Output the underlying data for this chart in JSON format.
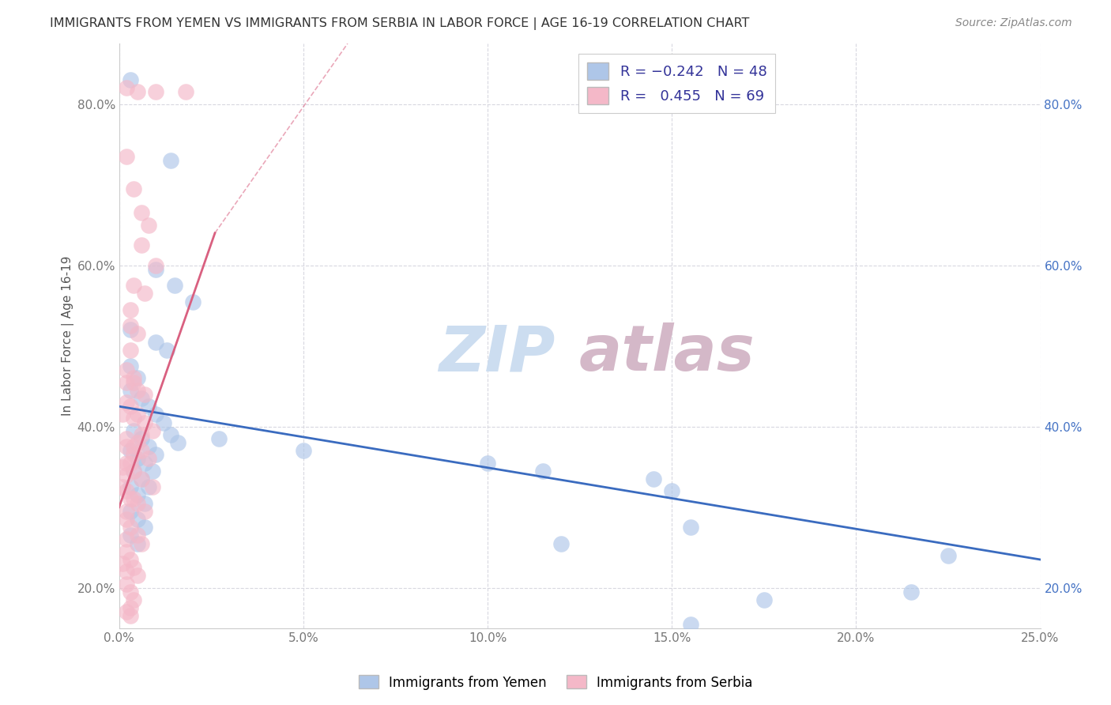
{
  "title": "IMMIGRANTS FROM YEMEN VS IMMIGRANTS FROM SERBIA IN LABOR FORCE | AGE 16-19 CORRELATION CHART",
  "source": "Source: ZipAtlas.com",
  "ylabel": "In Labor Force | Age 16-19",
  "xlim": [
    0.0,
    0.25
  ],
  "ylim": [
    0.15,
    0.875
  ],
  "x_ticks": [
    0.0,
    0.05,
    0.1,
    0.15,
    0.2,
    0.25
  ],
  "y_ticks": [
    0.2,
    0.4,
    0.6,
    0.8
  ],
  "yemen_color": "#aec6e8",
  "serbia_color": "#f4b8c8",
  "yemen_line_color": "#3a6bbf",
  "serbia_line_color": "#d96080",
  "watermark_zip_color": "#ccddf0",
  "watermark_atlas_color": "#d4b8c8",
  "background_color": "#ffffff",
  "grid_color": "#d8d8e0",
  "yemen_scatter": [
    [
      0.003,
      0.83
    ],
    [
      0.014,
      0.73
    ],
    [
      0.01,
      0.595
    ],
    [
      0.015,
      0.575
    ],
    [
      0.02,
      0.555
    ],
    [
      0.003,
      0.52
    ],
    [
      0.01,
      0.505
    ],
    [
      0.013,
      0.495
    ],
    [
      0.003,
      0.475
    ],
    [
      0.005,
      0.46
    ],
    [
      0.003,
      0.445
    ],
    [
      0.006,
      0.435
    ],
    [
      0.008,
      0.425
    ],
    [
      0.01,
      0.415
    ],
    [
      0.012,
      0.405
    ],
    [
      0.014,
      0.39
    ],
    [
      0.016,
      0.38
    ],
    [
      0.004,
      0.395
    ],
    [
      0.006,
      0.385
    ],
    [
      0.008,
      0.375
    ],
    [
      0.01,
      0.365
    ],
    [
      0.003,
      0.37
    ],
    [
      0.005,
      0.36
    ],
    [
      0.007,
      0.355
    ],
    [
      0.009,
      0.345
    ],
    [
      0.004,
      0.345
    ],
    [
      0.006,
      0.335
    ],
    [
      0.008,
      0.325
    ],
    [
      0.003,
      0.325
    ],
    [
      0.005,
      0.315
    ],
    [
      0.007,
      0.305
    ],
    [
      0.003,
      0.295
    ],
    [
      0.005,
      0.285
    ],
    [
      0.007,
      0.275
    ],
    [
      0.003,
      0.265
    ],
    [
      0.005,
      0.255
    ],
    [
      0.027,
      0.385
    ],
    [
      0.05,
      0.37
    ],
    [
      0.1,
      0.355
    ],
    [
      0.115,
      0.345
    ],
    [
      0.145,
      0.335
    ],
    [
      0.15,
      0.32
    ],
    [
      0.12,
      0.255
    ],
    [
      0.155,
      0.275
    ],
    [
      0.175,
      0.185
    ],
    [
      0.215,
      0.195
    ],
    [
      0.225,
      0.24
    ],
    [
      0.155,
      0.155
    ]
  ],
  "serbia_scatter": [
    [
      0.002,
      0.82
    ],
    [
      0.005,
      0.815
    ],
    [
      0.01,
      0.815
    ],
    [
      0.018,
      0.815
    ],
    [
      0.002,
      0.735
    ],
    [
      0.004,
      0.695
    ],
    [
      0.006,
      0.665
    ],
    [
      0.008,
      0.65
    ],
    [
      0.006,
      0.625
    ],
    [
      0.01,
      0.6
    ],
    [
      0.004,
      0.575
    ],
    [
      0.007,
      0.565
    ],
    [
      0.003,
      0.545
    ],
    [
      0.003,
      0.525
    ],
    [
      0.005,
      0.515
    ],
    [
      0.003,
      0.495
    ],
    [
      0.002,
      0.47
    ],
    [
      0.004,
      0.455
    ],
    [
      0.005,
      0.445
    ],
    [
      0.007,
      0.44
    ],
    [
      0.003,
      0.425
    ],
    [
      0.005,
      0.415
    ],
    [
      0.007,
      0.405
    ],
    [
      0.009,
      0.395
    ],
    [
      0.002,
      0.385
    ],
    [
      0.004,
      0.375
    ],
    [
      0.006,
      0.37
    ],
    [
      0.008,
      0.36
    ],
    [
      0.002,
      0.355
    ],
    [
      0.004,
      0.345
    ],
    [
      0.006,
      0.335
    ],
    [
      0.009,
      0.325
    ],
    [
      0.002,
      0.32
    ],
    [
      0.004,
      0.31
    ],
    [
      0.005,
      0.305
    ],
    [
      0.007,
      0.295
    ],
    [
      0.002,
      0.285
    ],
    [
      0.003,
      0.275
    ],
    [
      0.005,
      0.265
    ],
    [
      0.006,
      0.255
    ],
    [
      0.002,
      0.245
    ],
    [
      0.003,
      0.235
    ],
    [
      0.004,
      0.225
    ],
    [
      0.005,
      0.215
    ],
    [
      0.002,
      0.205
    ],
    [
      0.003,
      0.195
    ],
    [
      0.004,
      0.185
    ],
    [
      0.003,
      0.175
    ],
    [
      0.002,
      0.375
    ],
    [
      0.004,
      0.365
    ],
    [
      0.002,
      0.34
    ],
    [
      0.002,
      0.17
    ],
    [
      0.003,
      0.165
    ],
    [
      0.002,
      0.26
    ],
    [
      0.002,
      0.295
    ],
    [
      0.001,
      0.415
    ],
    [
      0.002,
      0.43
    ],
    [
      0.005,
      0.38
    ],
    [
      0.006,
      0.39
    ],
    [
      0.003,
      0.355
    ],
    [
      0.001,
      0.35
    ],
    [
      0.002,
      0.455
    ],
    [
      0.004,
      0.46
    ],
    [
      0.001,
      0.325
    ],
    [
      0.003,
      0.31
    ],
    [
      0.004,
      0.41
    ],
    [
      0.001,
      0.23
    ],
    [
      0.002,
      0.22
    ]
  ],
  "yemen_line": {
    "x0": 0.0,
    "x1": 0.25,
    "y0": 0.425,
    "y1": 0.235
  },
  "serbia_line_solid": {
    "x0": 0.0,
    "x1": 0.026,
    "y0": 0.3,
    "y1": 0.64
  },
  "serbia_line_dashed": {
    "x0": 0.026,
    "x1": 0.062,
    "y0": 0.64,
    "y1": 0.875
  }
}
